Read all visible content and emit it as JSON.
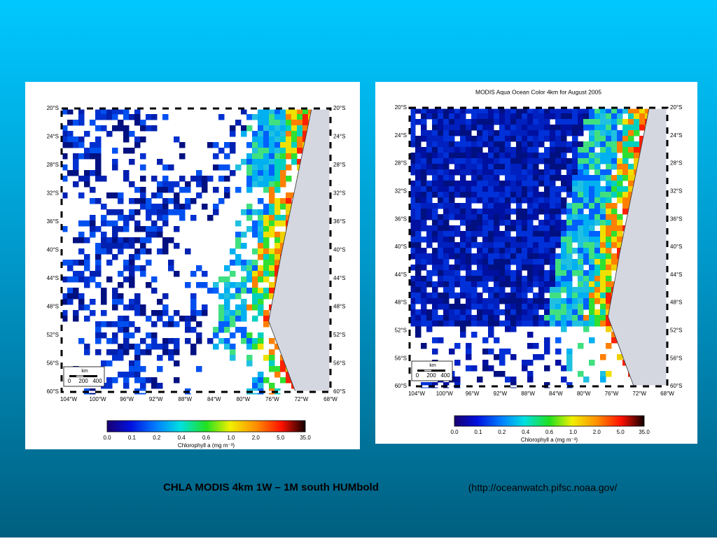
{
  "maps": [
    {
      "lat_labels": [
        "20°S",
        "24°S",
        "28°S",
        "32°S",
        "36°S",
        "40°S",
        "44°S",
        "48°S",
        "52°S",
        "56°S",
        "60°S"
      ],
      "lon_labels": [
        "104°W",
        "100°W",
        "96°W",
        "92°W",
        "88°W",
        "84°W",
        "80°W",
        "76°W",
        "72°W",
        "68°W"
      ],
      "scale": {
        "unit": "km",
        "ticks": [
          "0",
          "200",
          "400"
        ]
      },
      "colorbar": {
        "ticks": [
          "0.0",
          "0.1",
          "0.2",
          "0.4",
          "0.6",
          "1.0",
          "2.0",
          "5.0",
          "35.0"
        ],
        "label": "Chlorophyll a (mg m⁻³)"
      }
    },
    {
      "title": "MODIS Aqua Ocean Color 4km for August 2005",
      "lat_labels": [
        "20°S",
        "24°S",
        "28°S",
        "32°S",
        "36°S",
        "40°S",
        "44°S",
        "48°S",
        "52°S",
        "56°S",
        "60°S"
      ],
      "lon_labels": [
        "104°W",
        "100°W",
        "96°W",
        "92°W",
        "88°W",
        "84°W",
        "80°W",
        "76°W",
        "72°W",
        "68°W"
      ],
      "scale": {
        "unit": "km",
        "ticks": [
          "0",
          "200",
          "400"
        ]
      },
      "colorbar": {
        "ticks": [
          "0.0",
          "0.1",
          "0.2",
          "0.4",
          "0.6",
          "1.0",
          "2.0",
          "5.0",
          "35.0"
        ],
        "label": "Chlorophyll a (mg m⁻³)"
      }
    }
  ],
  "caption": "CHLA MODIS  4km   1W – 1M   south HUMbold",
  "source": "(http://oceanwatch.pifsc.noaa.gov/"
}
